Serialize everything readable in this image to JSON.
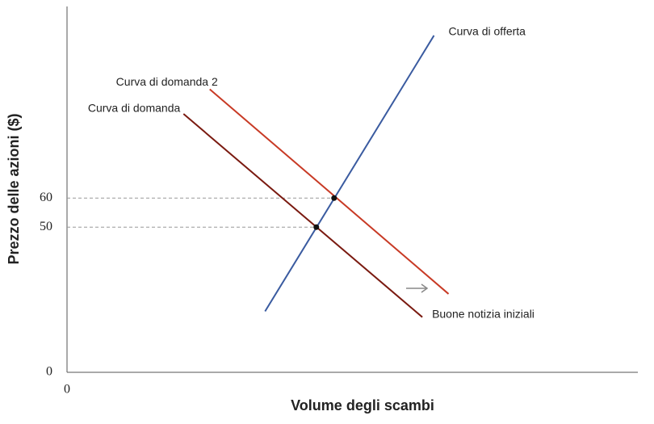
{
  "chart_data": {
    "type": "line",
    "x_label": "Volume degli scambi",
    "y_label": "Prezzo delle azioni ($)",
    "xlim": [
      0,
      196
    ],
    "ylim": [
      0,
      126
    ],
    "xticks": [
      0
    ],
    "yticks": [
      0,
      50,
      60
    ],
    "series": [
      {
        "name": "Curva di offerta",
        "color": "#3a5ba0",
        "x": [
          68,
          126
        ],
        "values": [
          21,
          116
        ]
      },
      {
        "name": "Curva di domanda",
        "color": "#7a1a10",
        "x": [
          40,
          122
        ],
        "values": [
          89,
          19
        ]
      },
      {
        "name": "Curva di domanda 2",
        "color": "#c83a25",
        "x": [
          49,
          131
        ],
        "values": [
          97.5,
          27
        ]
      }
    ],
    "points": {
      "x": [
        85.6,
        91.7
      ],
      "values": [
        50,
        60
      ]
    },
    "annotation": "Buone notizia iniziali"
  }
}
